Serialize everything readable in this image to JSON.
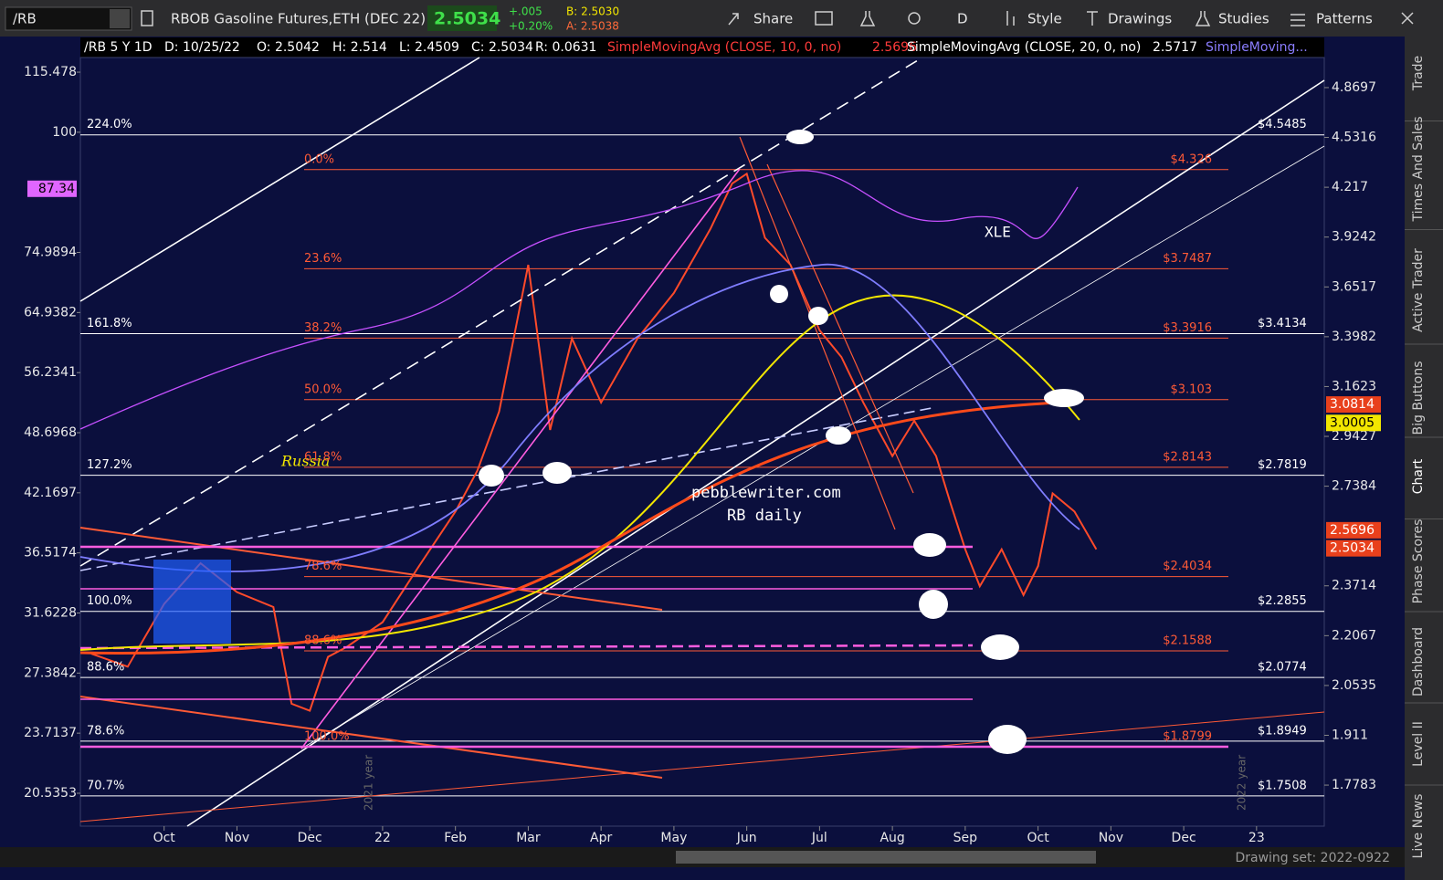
{
  "toolbar": {
    "symbol": "/RB",
    "description": "RBOB Gasoline Futures,ETH (DEC 22)",
    "last": "2.5034",
    "change": "+.005",
    "change_pct": "+0.20%",
    "bid": "B: 2.5030",
    "ask": "A: 2.5038",
    "buttons": [
      "Share",
      "D",
      "Style",
      "Drawings",
      "Studies",
      "Patterns"
    ]
  },
  "header": {
    "items": [
      "/RB 5 Y 1D",
      "D: 10/25/22",
      "O: 2.5042",
      "H: 2.514",
      "L: 2.4509",
      "C: 2.5034",
      "R: 0.0631"
    ],
    "studies": [
      {
        "label": "SimpleMovingAvg (CLOSE, 10, 0, no)",
        "value": "2.5696",
        "color": "#ff3b3b"
      },
      {
        "label": "SimpleMovingAvg (CLOSE, 20, 0, no)",
        "value": "2.5717",
        "color": "#ffffff"
      },
      {
        "label": "SimpleMoving...",
        "color": "#8a7dff"
      }
    ]
  },
  "sidebar": [
    "Trade",
    "Times And Sales",
    "Active Trader",
    "Big Buttons",
    "Chart",
    "Phase Scores",
    "Dashboard",
    "Level II",
    "Live News"
  ],
  "drawing_set": "Drawing set: 2022-0922",
  "annotations": [
    "XLE",
    "Russia",
    "pebblewriter.com",
    "RB daily",
    "2021 year",
    "2022 year"
  ],
  "chart_data": {
    "type": "line",
    "log": true,
    "x": [
      -1,
      -0.5,
      0,
      0.5,
      1,
      1.5,
      1.75,
      2,
      2.25,
      2.5,
      3,
      3.5,
      4,
      4.3,
      4.6,
      4.8,
      5,
      5.3,
      5.6,
      6,
      6.5,
      7,
      7.5,
      7.8,
      8,
      8.25,
      8.6,
      9,
      9.3,
      9.6,
      10,
      10.3,
      10.6,
      10.8,
      11,
      11.2,
      11.5,
      11.8,
      12,
      12.2,
      12.5,
      12.8
    ],
    "values": [
      2.15,
      2.11,
      2.31,
      2.45,
      2.35,
      2.3,
      2,
      1.98,
      2.14,
      2.17,
      2.25,
      2.44,
      2.64,
      2.8,
      3.05,
      3.39,
      3.77,
      2.97,
      3.39,
      3.09,
      3.39,
      3.62,
      3.97,
      4.24,
      4.3,
      3.92,
      3.77,
      3.43,
      3.3,
      3.09,
      2.86,
      3.01,
      2.86,
      2.67,
      2.5,
      2.37,
      2.5,
      2.34,
      2.44,
      2.71,
      2.64,
      2.5
    ],
    "color": "#ff4a2a",
    "xlim": [
      -1.15,
      15.93
    ],
    "xticks": [
      {
        "value": 0,
        "label": "Oct"
      },
      {
        "value": 1,
        "label": "Nov"
      },
      {
        "value": 2,
        "label": "Dec"
      },
      {
        "value": 3,
        "label": "22"
      },
      {
        "value": 4,
        "label": "Feb"
      },
      {
        "value": 5,
        "label": "Mar"
      },
      {
        "value": 6,
        "label": "Apr"
      },
      {
        "value": 7,
        "label": "May"
      },
      {
        "value": 8,
        "label": "Jun"
      },
      {
        "value": 9,
        "label": "Jul"
      },
      {
        "value": 10,
        "label": "Aug"
      },
      {
        "value": 11,
        "label": "Sep"
      },
      {
        "value": 12,
        "label": "Oct"
      },
      {
        "value": 13,
        "label": "Nov"
      },
      {
        "value": 14,
        "label": "Dec"
      },
      {
        "value": 15,
        "label": "23"
      }
    ],
    "ylim": [
      1.676,
      5.086
    ],
    "yticks": [
      4.8697,
      4.5316,
      4.217,
      3.9242,
      3.6517,
      3.3982,
      3.1623,
      2.9427,
      2.7384,
      2.3714,
      2.2067,
      2.0535,
      1.911,
      1.7783
    ],
    "y2lim": [
      18.98,
      119.6
    ],
    "y2ticks": [
      115.478,
      100,
      74.9894,
      64.9382,
      56.2341,
      48.6968,
      42.1697,
      36.5174,
      31.6228,
      27.3842,
      23.7137,
      20.5353
    ],
    "price_markers": [
      {
        "value": 3.0814,
        "color": "#e8401c"
      },
      {
        "value": 3.0005,
        "color": "#f2e600"
      },
      {
        "value": 2.5696,
        "color": "#e8401c"
      },
      {
        "value": 2.5034,
        "color": "#e8401c"
      }
    ],
    "y2_markers": [
      {
        "value": 87.34,
        "color": "#e066ff"
      }
    ],
    "fib_sets": [
      {
        "color": "#ff5a36",
        "levels": [
          {
            "label": "0.0%",
            "value": 4.326,
            "value_label": "$4.326"
          },
          {
            "label": "23.6%",
            "value": 3.7487,
            "value_label": "$3.7487"
          },
          {
            "label": "38.2%",
            "value": 3.3916,
            "value_label": "$3.3916"
          },
          {
            "label": "50.0%",
            "value": 3.103,
            "value_label": "$3.103"
          },
          {
            "label": "61.8%",
            "value": 2.8143,
            "value_label": "$2.8143"
          },
          {
            "label": "78.6%",
            "value": 2.4034,
            "value_label": "$2.4034"
          },
          {
            "label": "88.6%",
            "value": 2.1588,
            "value_label": "$2.1588"
          },
          {
            "label": "100.0%",
            "value": 1.8799,
            "value_label": "$1.8799"
          }
        ]
      },
      {
        "color": "#ffffff",
        "levels": [
          {
            "label": "224.0%",
            "value": 4.5485,
            "value_label": "$4.5485"
          },
          {
            "label": "161.8%",
            "value": 3.4134,
            "value_label": "$3.4134"
          },
          {
            "label": "127.2%",
            "value": 2.7819,
            "value_label": "$2.7819"
          },
          {
            "label": "100.0%",
            "value": 2.2855,
            "value_label": "$2.2855"
          },
          {
            "label": "88.6%",
            "value": 2.0774,
            "value_label": "$2.0774"
          },
          {
            "label": "78.6%",
            "value": 1.8949,
            "value_label": "$1.8949"
          },
          {
            "label": "70.7%",
            "value": 1.7508,
            "value_label": "$1.7508"
          }
        ]
      }
    ]
  }
}
